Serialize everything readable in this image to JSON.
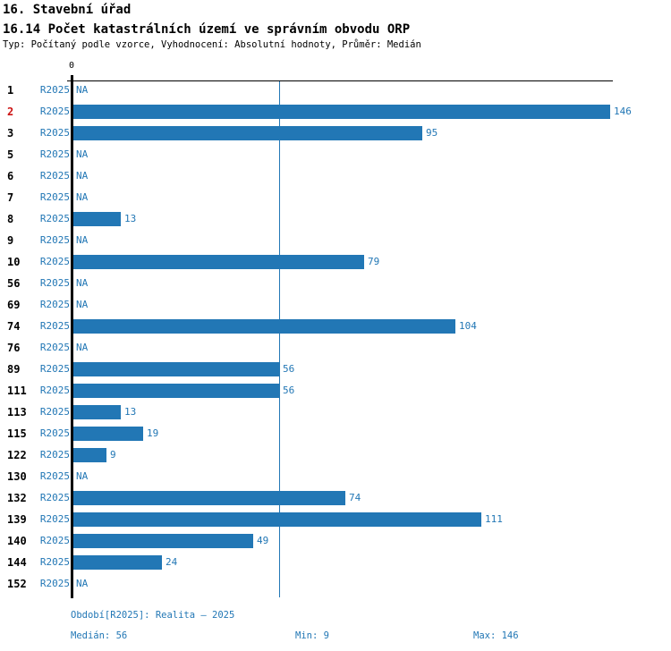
{
  "header": {
    "title": "16. Stavební úřad",
    "subtitle": "16.14 Počet katastrálních území ve správním obvodu ORP",
    "meta": "Typ: Počítaný podle vzorce, Vyhodnocení: Absolutní hodnoty, Průměr: Medián"
  },
  "axis": {
    "zero_label": "0"
  },
  "footer": {
    "period": "Období[R2025]: Realita – 2025",
    "median": "Medián: 56",
    "min": "Min: 9",
    "max": "Max: 146"
  },
  "colors": {
    "bar": "#2277b5",
    "label_blue": "#2277b5",
    "highlight_red": "#cc1111",
    "axis": "#000000"
  },
  "chart_data": {
    "type": "bar",
    "orientation": "horizontal",
    "title": "16.14 Počet katastrálních území ve správním obvodu ORP",
    "subtitle_meta": "Typ: Počítaný podle vzorce, Vyhodnocení: Absolutní hodnoty, Průměr: Medián",
    "categories": [
      "1",
      "2",
      "3",
      "5",
      "6",
      "7",
      "8",
      "9",
      "10",
      "56",
      "69",
      "74",
      "76",
      "89",
      "111",
      "113",
      "115",
      "122",
      "130",
      "132",
      "139",
      "140",
      "144",
      "152"
    ],
    "series": [
      {
        "name": "R2025",
        "values": [
          null,
          146,
          95,
          null,
          null,
          null,
          13,
          null,
          79,
          null,
          null,
          104,
          null,
          56,
          56,
          13,
          19,
          9,
          null,
          74,
          111,
          49,
          24,
          null
        ]
      }
    ],
    "na_text": "NA",
    "highlighted_category": "2",
    "median": 56,
    "min": 9,
    "max": 146,
    "xlim": [
      0,
      146
    ],
    "x_ticks": [
      0
    ],
    "median_line": 56,
    "grid": false,
    "legend": false
  }
}
